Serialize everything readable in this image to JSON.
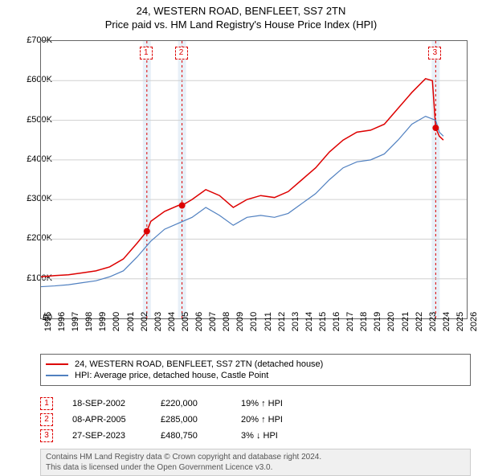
{
  "title": {
    "line1": "24, WESTERN ROAD, BENFLEET, SS7 2TN",
    "line2": "Price paid vs. HM Land Registry's House Price Index (HPI)"
  },
  "chart": {
    "type": "line",
    "background_color": "#ffffff",
    "grid_color": "#d0d0d0",
    "axis_color": "#666666",
    "xlim": [
      1995,
      2026
    ],
    "ylim": [
      0,
      700000
    ],
    "ytick_step": 100000,
    "yticklabels": [
      "£0",
      "£100K",
      "£200K",
      "£300K",
      "£400K",
      "£500K",
      "£600K",
      "£700K"
    ],
    "xticks": [
      1995,
      1996,
      1997,
      1998,
      1999,
      2000,
      2001,
      2002,
      2003,
      2004,
      2005,
      2006,
      2007,
      2008,
      2009,
      2010,
      2011,
      2012,
      2013,
      2014,
      2015,
      2016,
      2017,
      2018,
      2019,
      2020,
      2021,
      2022,
      2023,
      2024,
      2025,
      2026
    ],
    "highlights": [
      {
        "x": 2002.71,
        "label": "1",
        "band": true
      },
      {
        "x": 2005.27,
        "label": "2",
        "band": true
      },
      {
        "x": 2023.74,
        "label": "3",
        "band": true
      }
    ],
    "markers": [
      {
        "x": 2002.71,
        "y": 220000
      },
      {
        "x": 2005.27,
        "y": 285000
      },
      {
        "x": 2023.74,
        "y": 480750
      }
    ],
    "series": [
      {
        "name": "property",
        "color": "#dd0000",
        "width": 1.5,
        "points": [
          [
            1995,
            105000
          ],
          [
            1996,
            108000
          ],
          [
            1997,
            110000
          ],
          [
            1998,
            115000
          ],
          [
            1999,
            120000
          ],
          [
            2000,
            130000
          ],
          [
            2001,
            150000
          ],
          [
            2002,
            190000
          ],
          [
            2002.71,
            220000
          ],
          [
            2003,
            245000
          ],
          [
            2004,
            270000
          ],
          [
            2005,
            285000
          ],
          [
            2005.27,
            285000
          ],
          [
            2006,
            300000
          ],
          [
            2007,
            325000
          ],
          [
            2008,
            310000
          ],
          [
            2009,
            280000
          ],
          [
            2010,
            300000
          ],
          [
            2011,
            310000
          ],
          [
            2012,
            305000
          ],
          [
            2013,
            320000
          ],
          [
            2014,
            350000
          ],
          [
            2015,
            380000
          ],
          [
            2016,
            420000
          ],
          [
            2017,
            450000
          ],
          [
            2018,
            470000
          ],
          [
            2019,
            475000
          ],
          [
            2020,
            490000
          ],
          [
            2021,
            530000
          ],
          [
            2022,
            570000
          ],
          [
            2023,
            605000
          ],
          [
            2023.5,
            600000
          ],
          [
            2023.74,
            480750
          ],
          [
            2024,
            460000
          ],
          [
            2024.3,
            450000
          ]
        ]
      },
      {
        "name": "hpi",
        "color": "#5080c0",
        "width": 1.2,
        "points": [
          [
            1995,
            80000
          ],
          [
            1996,
            82000
          ],
          [
            1997,
            85000
          ],
          [
            1998,
            90000
          ],
          [
            1999,
            95000
          ],
          [
            2000,
            105000
          ],
          [
            2001,
            120000
          ],
          [
            2002,
            155000
          ],
          [
            2003,
            195000
          ],
          [
            2004,
            225000
          ],
          [
            2005,
            240000
          ],
          [
            2006,
            255000
          ],
          [
            2007,
            280000
          ],
          [
            2008,
            260000
          ],
          [
            2009,
            235000
          ],
          [
            2010,
            255000
          ],
          [
            2011,
            260000
          ],
          [
            2012,
            255000
          ],
          [
            2013,
            265000
          ],
          [
            2014,
            290000
          ],
          [
            2015,
            315000
          ],
          [
            2016,
            350000
          ],
          [
            2017,
            380000
          ],
          [
            2018,
            395000
          ],
          [
            2019,
            400000
          ],
          [
            2020,
            415000
          ],
          [
            2021,
            450000
          ],
          [
            2022,
            490000
          ],
          [
            2023,
            510000
          ],
          [
            2023.74,
            500000
          ],
          [
            2024,
            470000
          ],
          [
            2024.3,
            460000
          ]
        ]
      }
    ]
  },
  "legend": {
    "items": [
      {
        "color": "#dd0000",
        "label": "24, WESTERN ROAD, BENFLEET, SS7 2TN (detached house)"
      },
      {
        "color": "#5080c0",
        "label": "HPI: Average price, detached house, Castle Point"
      }
    ]
  },
  "transactions": [
    {
      "marker": "1",
      "date": "18-SEP-2002",
      "price": "£220,000",
      "pct": "19% ↑ HPI"
    },
    {
      "marker": "2",
      "date": "08-APR-2005",
      "price": "£285,000",
      "pct": "20% ↑ HPI"
    },
    {
      "marker": "3",
      "date": "27-SEP-2023",
      "price": "£480,750",
      "pct": "3% ↓ HPI"
    }
  ],
  "footer": {
    "line1": "Contains HM Land Registry data © Crown copyright and database right 2024.",
    "line2": "This data is licensed under the Open Government Licence v3.0."
  }
}
